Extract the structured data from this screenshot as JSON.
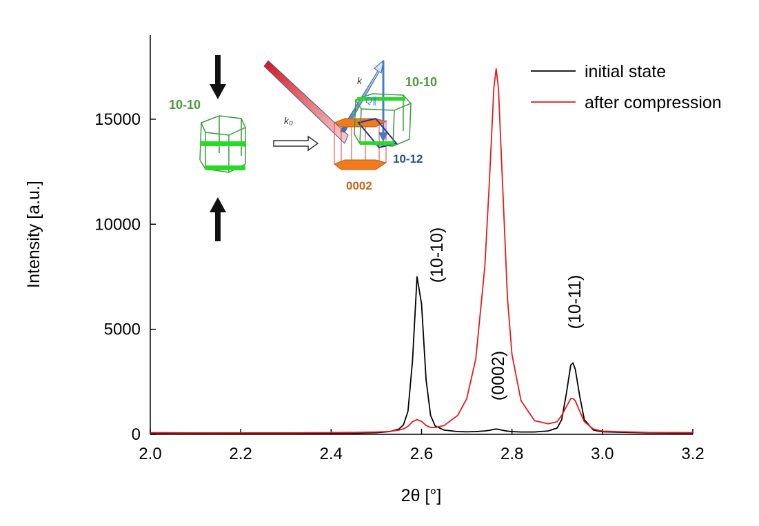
{
  "chart_data": {
    "type": "line",
    "x": [
      2.0,
      2.1,
      2.2,
      2.3,
      2.4,
      2.45,
      2.5,
      2.53,
      2.55,
      2.56,
      2.57,
      2.58,
      2.59,
      2.6,
      2.61,
      2.62,
      2.63,
      2.65,
      2.68,
      2.7,
      2.72,
      2.74,
      2.75,
      2.76,
      2.765,
      2.77,
      2.78,
      2.79,
      2.8,
      2.82,
      2.85,
      2.88,
      2.9,
      2.91,
      2.92,
      2.93,
      2.935,
      2.94,
      2.95,
      2.96,
      2.98,
      3.0,
      3.1,
      3.2
    ],
    "series": [
      {
        "name": "initial state",
        "color": "#000000",
        "values": [
          60,
          55,
          50,
          50,
          50,
          60,
          80,
          130,
          250,
          450,
          1100,
          3500,
          7500,
          6200,
          2600,
          900,
          400,
          200,
          130,
          120,
          130,
          160,
          190,
          240,
          250,
          240,
          190,
          150,
          130,
          110,
          110,
          160,
          300,
          700,
          1900,
          3300,
          3400,
          3100,
          1800,
          700,
          200,
          120,
          70,
          60
        ]
      },
      {
        "name": "after compression",
        "color": "#e8191a",
        "values": [
          80,
          70,
          70,
          70,
          80,
          90,
          110,
          140,
          200,
          260,
          380,
          600,
          700,
          620,
          420,
          330,
          320,
          420,
          900,
          1700,
          3600,
          8000,
          12000,
          16500,
          17400,
          16500,
          11500,
          6500,
          3800,
          1600,
          650,
          500,
          600,
          900,
          1300,
          1700,
          1700,
          1600,
          1100,
          600,
          250,
          150,
          90,
          80
        ]
      }
    ],
    "x_label": "2θ [°]",
    "y_label": "Intensity [a.u.]",
    "xlim": [
      2.0,
      3.2
    ],
    "xticks": [
      {
        "value": 2.0,
        "label": "2.0"
      },
      {
        "value": 2.2,
        "label": "2.2"
      },
      {
        "value": 2.4,
        "label": "2.4"
      },
      {
        "value": 2.6,
        "label": "2.6"
      },
      {
        "value": 2.8,
        "label": "2.8"
      },
      {
        "value": 3.0,
        "label": "3.0"
      },
      {
        "value": 3.2,
        "label": "3.2"
      }
    ],
    "ylim": [
      0,
      19000
    ],
    "yticks": [
      0,
      5000,
      10000,
      15000
    ],
    "legend": "upper right",
    "annotations": [
      "(10-10)",
      "(0002)",
      "(10-11)"
    ],
    "inset_labels": [
      "10-10",
      "k",
      "k₀",
      "Q∥",
      "10-10",
      "10-12",
      "0002"
    ]
  }
}
